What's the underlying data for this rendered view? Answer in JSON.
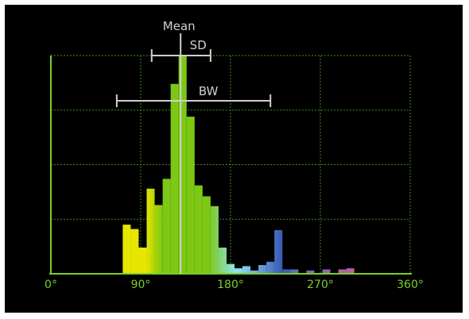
{
  "colors": {
    "background": "#000000",
    "frame": "#ffffff",
    "axis": "#7bcf2a",
    "grid": "#3f8f1a",
    "tick_label": "#7bcf2a",
    "annotation": "#cfcfcf",
    "yellow": "#e6e600",
    "green": "#7cc814",
    "cyan": "#8fe6f2",
    "blue": "#3a5fb8",
    "magenta": "#c060a0"
  },
  "chart_data": {
    "type": "bar",
    "title": "",
    "xlabel": "",
    "ylabel": "",
    "x_ticks": [
      "0°",
      "90°",
      "180°",
      "270°",
      "360°"
    ],
    "xlim": [
      0,
      360
    ],
    "ylim": [
      0,
      1
    ],
    "grid": true,
    "bin_width": 8,
    "bins": [
      {
        "x": 72,
        "value": 0.225
      },
      {
        "x": 80,
        "value": 0.205
      },
      {
        "x": 88,
        "value": 0.12
      },
      {
        "x": 96,
        "value": 0.39
      },
      {
        "x": 104,
        "value": 0.315
      },
      {
        "x": 112,
        "value": 0.435
      },
      {
        "x": 120,
        "value": 0.87
      },
      {
        "x": 128,
        "value": 1.0
      },
      {
        "x": 136,
        "value": 0.72
      },
      {
        "x": 144,
        "value": 0.405
      },
      {
        "x": 152,
        "value": 0.355
      },
      {
        "x": 160,
        "value": 0.31
      },
      {
        "x": 168,
        "value": 0.12
      },
      {
        "x": 176,
        "value": 0.045
      },
      {
        "x": 184,
        "value": 0.025
      },
      {
        "x": 192,
        "value": 0.035
      },
      {
        "x": 200,
        "value": 0.015
      },
      {
        "x": 208,
        "value": 0.04
      },
      {
        "x": 216,
        "value": 0.055
      },
      {
        "x": 224,
        "value": 0.2
      },
      {
        "x": 232,
        "value": 0.02
      },
      {
        "x": 240,
        "value": 0.02
      },
      {
        "x": 256,
        "value": 0.015
      },
      {
        "x": 272,
        "value": 0.02
      },
      {
        "x": 288,
        "value": 0.02
      },
      {
        "x": 296,
        "value": 0.025
      }
    ],
    "annotations": {
      "mean": {
        "label": "Mean",
        "value": 130
      },
      "sd": {
        "label": "SD",
        "from": 101,
        "to": 160
      },
      "bw": {
        "label": "BW",
        "from": 66,
        "to": 220
      }
    }
  }
}
